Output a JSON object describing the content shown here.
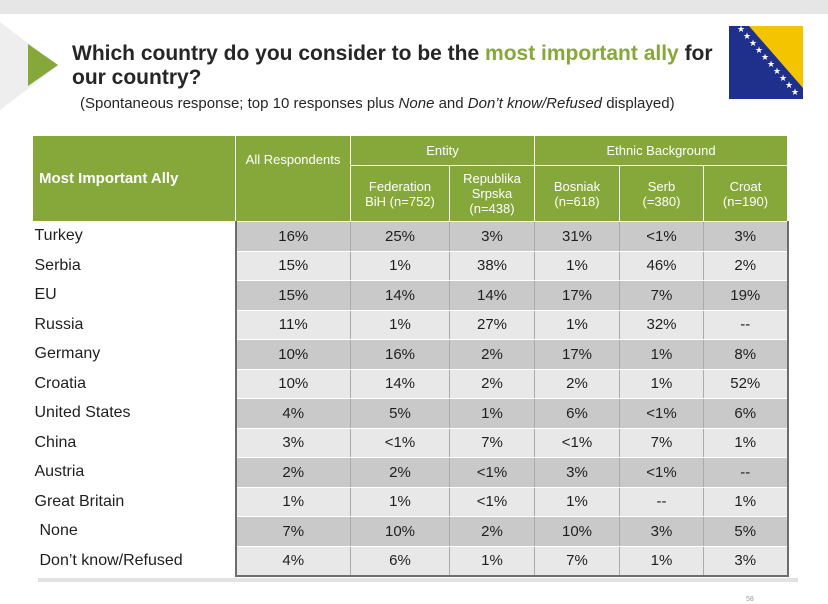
{
  "title": {
    "part1": "Which country do you consider to be the ",
    "highlight": "most important ally",
    "part2": " for our country?"
  },
  "subtitle": {
    "part1": "(Spontaneous response; top 10 responses plus ",
    "italic1": "None",
    "part2": " and ",
    "italic2": "Don’t know/Refused",
    "part3": " displayed)"
  },
  "colors": {
    "accent": "#86a83a",
    "flag_blue": "#1f2f8c",
    "flag_yellow": "#f5c400"
  },
  "table": {
    "row_header": "Most Important Ally",
    "all_header": "All Respondents",
    "group_entity": "Entity",
    "group_ethnic": "Ethnic Background",
    "columns": [
      {
        "name": "Federation",
        "sub": "BiH (n=752)"
      },
      {
        "name": "Republika Srpska",
        "sub": "(n=438)"
      },
      {
        "name": "Bosniak",
        "sub": "(n=618)"
      },
      {
        "name": "Serb",
        "sub": "(=380)"
      },
      {
        "name": "Croat",
        "sub": "(n=190)"
      }
    ],
    "rows": [
      {
        "label": "Turkey",
        "values": [
          "16%",
          "25%",
          "3%",
          "31%",
          "<1%",
          "3%"
        ]
      },
      {
        "label": "Serbia",
        "values": [
          "15%",
          "1%",
          "38%",
          "1%",
          "46%",
          "2%"
        ]
      },
      {
        "label": "EU",
        "values": [
          "15%",
          "14%",
          "14%",
          "17%",
          "7%",
          "19%"
        ]
      },
      {
        "label": "Russia",
        "values": [
          "11%",
          "1%",
          "27%",
          "1%",
          "32%",
          "--"
        ]
      },
      {
        "label": "Germany",
        "values": [
          "10%",
          "16%",
          "2%",
          "17%",
          "1%",
          "8%"
        ]
      },
      {
        "label": "Croatia",
        "values": [
          "10%",
          "14%",
          "2%",
          "2%",
          "1%",
          "52%"
        ]
      },
      {
        "label": "United States",
        "values": [
          "4%",
          "5%",
          "1%",
          "6%",
          "<1%",
          "6%"
        ]
      },
      {
        "label": "China",
        "values": [
          "3%",
          "<1%",
          "7%",
          "<1%",
          "7%",
          "1%"
        ]
      },
      {
        "label": "Austria",
        "values": [
          "2%",
          "2%",
          "<1%",
          "3%",
          "<1%",
          "--"
        ]
      },
      {
        "label": "Great Britain",
        "values": [
          "1%",
          "1%",
          "<1%",
          "1%",
          "--",
          "1%"
        ]
      },
      {
        "label": "None",
        "values": [
          "7%",
          "10%",
          "2%",
          "10%",
          "3%",
          "5%"
        ]
      },
      {
        "label": "Don’t know/Refused",
        "values": [
          "4%",
          "6%",
          "1%",
          "7%",
          "1%",
          "3%"
        ]
      }
    ]
  },
  "page_number": "58"
}
